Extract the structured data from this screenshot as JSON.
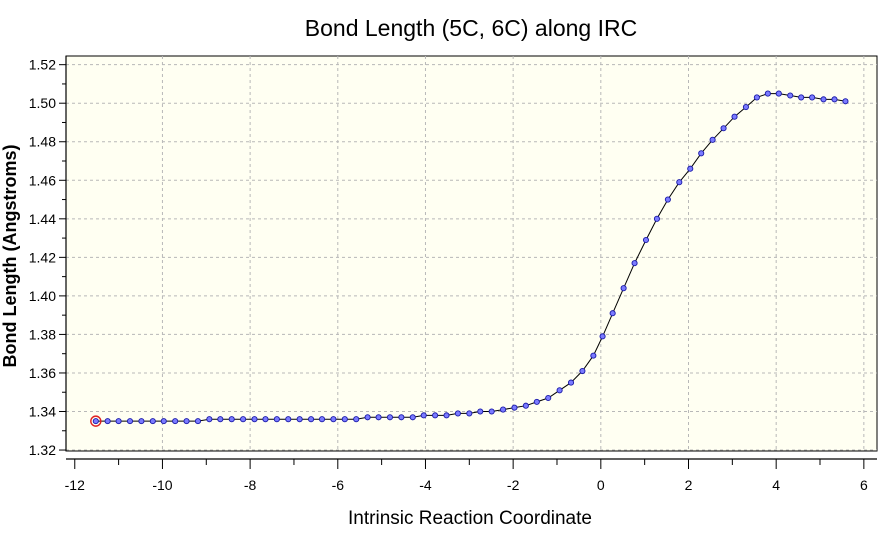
{
  "chart_data": {
    "type": "line",
    "title": "Bond Length (5C, 6C) along IRC",
    "xlabel": "Intrinsic Reaction Coordinate",
    "ylabel": "Bond Length (Angstroms)",
    "xlim": [
      -12.2,
      6.3
    ],
    "ylim": [
      1.3195,
      1.5245
    ],
    "x_ticks": [
      -12,
      -10,
      -8,
      -6,
      -4,
      -2,
      0,
      2,
      4,
      6
    ],
    "x_tick_labels": [
      "-12",
      "-10",
      "-8",
      "-6",
      "-4",
      "-2",
      "0",
      "2",
      "4",
      "6"
    ],
    "y_ticks": [
      1.32,
      1.34,
      1.36,
      1.38,
      1.4,
      1.42,
      1.44,
      1.46,
      1.48,
      1.5,
      1.52
    ],
    "y_tick_labels": [
      "1.32",
      "1.34",
      "1.36",
      "1.38",
      "1.40",
      "1.42",
      "1.44",
      "1.46",
      "1.48",
      "1.50",
      "1.52"
    ],
    "grid": true,
    "legend": "none",
    "colors": {
      "line": "#000000",
      "marker_fill": "#7b7bff",
      "marker_stroke": "#1a1aa8",
      "highlight": "#e02020",
      "plot_bg": "#fffff2",
      "grid": "#b8b8b8"
    },
    "highlight_index": 0,
    "series": [
      {
        "x": [
          -11.52,
          -11.25,
          -11.0,
          -10.74,
          -10.48,
          -10.22,
          -9.97,
          -9.71,
          -9.45,
          -9.19,
          -8.93,
          -8.68,
          -8.42,
          -8.16,
          -7.9,
          -7.65,
          -7.39,
          -7.13,
          -6.87,
          -6.61,
          -6.36,
          -6.1,
          -5.84,
          -5.58,
          -5.32,
          -5.07,
          -4.81,
          -4.55,
          -4.29,
          -4.04,
          -3.78,
          -3.52,
          -3.26,
          -3.0,
          -2.75,
          -2.49,
          -2.23,
          -1.97,
          -1.71,
          -1.46,
          -1.2,
          -0.94,
          -0.68,
          -0.42,
          -0.17,
          0.04,
          0.27,
          0.52,
          0.77,
          1.03,
          1.28,
          1.53,
          1.79,
          2.04,
          2.29,
          2.55,
          2.8,
          3.05,
          3.31,
          3.56,
          3.81,
          4.06,
          4.32,
          4.57,
          4.82,
          5.08,
          5.33,
          5.58
        ],
        "y": [
          1.335,
          1.335,
          1.335,
          1.335,
          1.335,
          1.335,
          1.335,
          1.335,
          1.335,
          1.335,
          1.336,
          1.336,
          1.336,
          1.336,
          1.336,
          1.336,
          1.336,
          1.336,
          1.336,
          1.336,
          1.336,
          1.336,
          1.336,
          1.336,
          1.337,
          1.337,
          1.337,
          1.337,
          1.337,
          1.338,
          1.338,
          1.338,
          1.339,
          1.339,
          1.34,
          1.34,
          1.341,
          1.342,
          1.343,
          1.345,
          1.347,
          1.351,
          1.355,
          1.361,
          1.369,
          1.379,
          1.391,
          1.404,
          1.417,
          1.429,
          1.44,
          1.45,
          1.459,
          1.466,
          1.474,
          1.481,
          1.487,
          1.493,
          1.498,
          1.503,
          1.505,
          1.505,
          1.504,
          1.503,
          1.503,
          1.502,
          1.502,
          1.501
        ]
      }
    ]
  }
}
